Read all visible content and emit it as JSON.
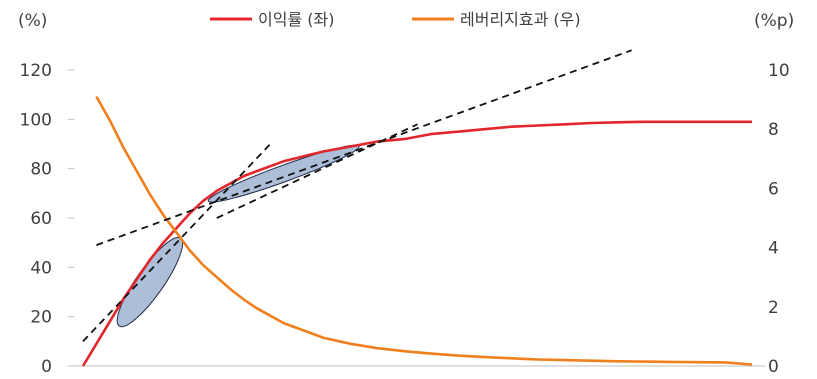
{
  "chart_data": {
    "type": "line",
    "y_left_unit": "(%)",
    "y_right_unit": "(%p)",
    "y_left_ticks": [
      "0",
      "20",
      "40",
      "60",
      "80",
      "100",
      "120"
    ],
    "y_right_ticks": [
      "0",
      "2",
      "4",
      "6",
      "8",
      "10"
    ],
    "ylim_left": [
      0,
      120
    ],
    "ylim_right": [
      0,
      10
    ],
    "grid": false,
    "legend_position": "top",
    "series": [
      {
        "name": "이익률 (좌)",
        "axis": "left",
        "color": "#e3262b",
        "x": [
          0,
          2,
          4,
          6,
          8,
          10,
          12,
          14,
          16,
          18,
          20,
          22,
          24,
          26,
          28,
          30,
          33,
          36,
          40,
          44,
          48,
          52,
          56,
          60,
          64,
          68,
          72,
          76,
          80,
          84,
          88,
          92,
          96,
          100
        ],
        "y": [
          0,
          9,
          18,
          27,
          35,
          43,
          50,
          56,
          62,
          67,
          71,
          74,
          77,
          79,
          81,
          83,
          85,
          87,
          89,
          91,
          92,
          94,
          95,
          96,
          97,
          97.5,
          98,
          98.5,
          98.8,
          99,
          99,
          99,
          99,
          99
        ]
      },
      {
        "name": "레버리지효과 (우)",
        "axis": "right",
        "color": "#f07f1e",
        "x": [
          2,
          4,
          6,
          8,
          10,
          12,
          14,
          16,
          18,
          20,
          22,
          24,
          26,
          28,
          30,
          33,
          36,
          40,
          44,
          48,
          52,
          56,
          60,
          64,
          68,
          72,
          76,
          80,
          84,
          88,
          92,
          96,
          100
        ],
        "y": [
          9.1,
          8.3,
          7.4,
          6.6,
          5.8,
          5.1,
          4.5,
          3.9,
          3.4,
          3.0,
          2.6,
          2.25,
          1.95,
          1.7,
          1.45,
          1.2,
          0.95,
          0.75,
          0.6,
          0.5,
          0.42,
          0.35,
          0.3,
          0.26,
          0.22,
          0.2,
          0.18,
          0.16,
          0.15,
          0.14,
          0.13,
          0.12,
          0.05
        ]
      }
    ],
    "annotations": {
      "tangent_lines": [
        {
          "x": [
            0,
            28
          ],
          "y": [
            10,
            90
          ]
        },
        {
          "x": [
            2,
            82
          ],
          "y": [
            49,
            128
          ]
        },
        {
          "x": [
            20,
            50
          ],
          "y": [
            60,
            98
          ]
        }
      ],
      "ellipses": [
        {
          "cx": 10,
          "cy": 34,
          "rx_x": 8,
          "ry_y": 10,
          "angle": -55
        },
        {
          "cx": 30,
          "cy": 78,
          "rx_x": 12,
          "ry_y": 6,
          "angle": -20
        }
      ]
    }
  }
}
